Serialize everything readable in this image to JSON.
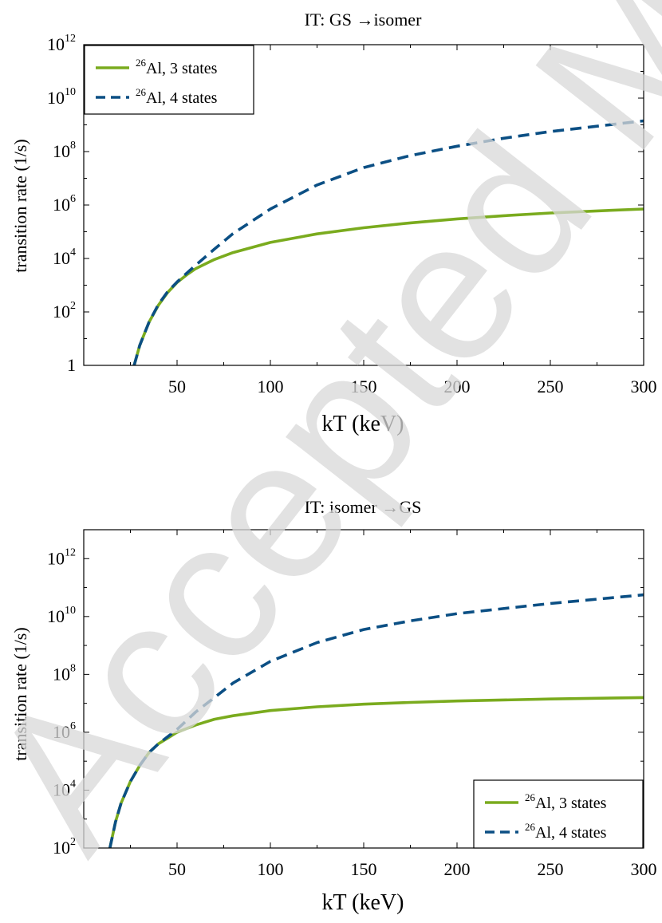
{
  "watermark": {
    "text": "Accepted Manuscript",
    "color": "#cfcfcf"
  },
  "chart_data": [
    {
      "type": "line",
      "title": "IT: GS →isomer",
      "xlabel": "kT (keV)",
      "ylabel": "transition rate (1/s)",
      "xlim": [
        0,
        300
      ],
      "yscale": "log",
      "ylim_log10": [
        0,
        12
      ],
      "xticks": [
        {
          "value": 50,
          "label": "50"
        },
        {
          "value": 100,
          "label": "100"
        },
        {
          "value": 150,
          "label": "150"
        },
        {
          "value": 200,
          "label": "200"
        },
        {
          "value": 250,
          "label": "250"
        },
        {
          "value": 300,
          "label": "300"
        }
      ],
      "yticks": [
        {
          "exp": 0,
          "base": "1",
          "sup": ""
        },
        {
          "exp": 2,
          "base": "10",
          "sup": "2"
        },
        {
          "exp": 4,
          "base": "10",
          "sup": "4"
        },
        {
          "exp": 6,
          "base": "10",
          "sup": "6"
        },
        {
          "exp": 8,
          "base": "10",
          "sup": "8"
        },
        {
          "exp": 10,
          "base": "10",
          "sup": "10"
        },
        {
          "exp": 12,
          "base": "10",
          "sup": "12"
        }
      ],
      "legend": {
        "position": "top-left",
        "entries": [
          {
            "sup": "26",
            "text": "Al, 3 states",
            "color": "#7aab1e",
            "dash": "solid"
          },
          {
            "sup": "26",
            "text": "Al, 4 states",
            "color": "#0b4f84",
            "dash": "dashed"
          }
        ]
      },
      "series": [
        {
          "color": "#7aab1e",
          "dash": "solid",
          "x": [
            27,
            30,
            35,
            40,
            45,
            50,
            55,
            60,
            70,
            80,
            100,
            125,
            150,
            175,
            200,
            225,
            250,
            275,
            300
          ],
          "log10_y": [
            0.0,
            0.75,
            1.62,
            2.25,
            2.73,
            3.1,
            3.38,
            3.62,
            3.96,
            4.22,
            4.6,
            4.92,
            5.15,
            5.33,
            5.48,
            5.6,
            5.7,
            5.78,
            5.85
          ]
        },
        {
          "color": "#0b4f84",
          "dash": "dashed",
          "x": [
            27,
            30,
            35,
            40,
            45,
            50,
            55,
            60,
            70,
            80,
            100,
            125,
            150,
            175,
            200,
            225,
            250,
            275,
            300
          ],
          "log10_y": [
            0.0,
            0.75,
            1.62,
            2.28,
            2.76,
            3.12,
            3.44,
            3.75,
            4.35,
            4.93,
            5.85,
            6.75,
            7.4,
            7.85,
            8.2,
            8.5,
            8.75,
            8.95,
            9.15
          ]
        }
      ]
    },
    {
      "type": "line",
      "title": "IT: isomer →GS",
      "xlabel": "kT (keV)",
      "ylabel": "transition rate (1/s)",
      "xlim": [
        0,
        300
      ],
      "yscale": "log",
      "ylim_log10": [
        2,
        13
      ],
      "xticks": [
        {
          "value": 50,
          "label": "50"
        },
        {
          "value": 100,
          "label": "100"
        },
        {
          "value": 150,
          "label": "150"
        },
        {
          "value": 200,
          "label": "200"
        },
        {
          "value": 250,
          "label": "250"
        },
        {
          "value": 300,
          "label": "300"
        }
      ],
      "yticks": [
        {
          "exp": 2,
          "base": "10",
          "sup": "2"
        },
        {
          "exp": 4,
          "base": "10",
          "sup": "4"
        },
        {
          "exp": 6,
          "base": "10",
          "sup": "6"
        },
        {
          "exp": 8,
          "base": "10",
          "sup": "8"
        },
        {
          "exp": 10,
          "base": "10",
          "sup": "10"
        },
        {
          "exp": 12,
          "base": "10",
          "sup": "12"
        }
      ],
      "legend": {
        "position": "bottom-right",
        "entries": [
          {
            "sup": "26",
            "text": "Al, 3 states",
            "color": "#7aab1e",
            "dash": "solid"
          },
          {
            "sup": "26",
            "text": "Al, 4 states",
            "color": "#0b4f84",
            "dash": "dashed"
          }
        ]
      },
      "series": [
        {
          "color": "#7aab1e",
          "dash": "solid",
          "x": [
            14,
            17,
            20,
            25,
            30,
            35,
            40,
            45,
            50,
            60,
            70,
            80,
            100,
            125,
            150,
            175,
            200,
            250,
            300
          ],
          "log10_y": [
            2.0,
            2.9,
            3.55,
            4.3,
            4.85,
            5.3,
            5.6,
            5.8,
            6.0,
            6.25,
            6.45,
            6.57,
            6.75,
            6.88,
            6.97,
            7.03,
            7.08,
            7.15,
            7.2
          ]
        },
        {
          "color": "#0b4f84",
          "dash": "dashed",
          "x": [
            14,
            17,
            20,
            25,
            30,
            35,
            40,
            45,
            50,
            60,
            70,
            80,
            100,
            125,
            150,
            175,
            200,
            250,
            300
          ],
          "log10_y": [
            2.0,
            2.9,
            3.55,
            4.3,
            4.85,
            5.3,
            5.6,
            5.85,
            6.1,
            6.7,
            7.2,
            7.7,
            8.45,
            9.1,
            9.55,
            9.85,
            10.1,
            10.45,
            10.75
          ]
        }
      ]
    }
  ]
}
